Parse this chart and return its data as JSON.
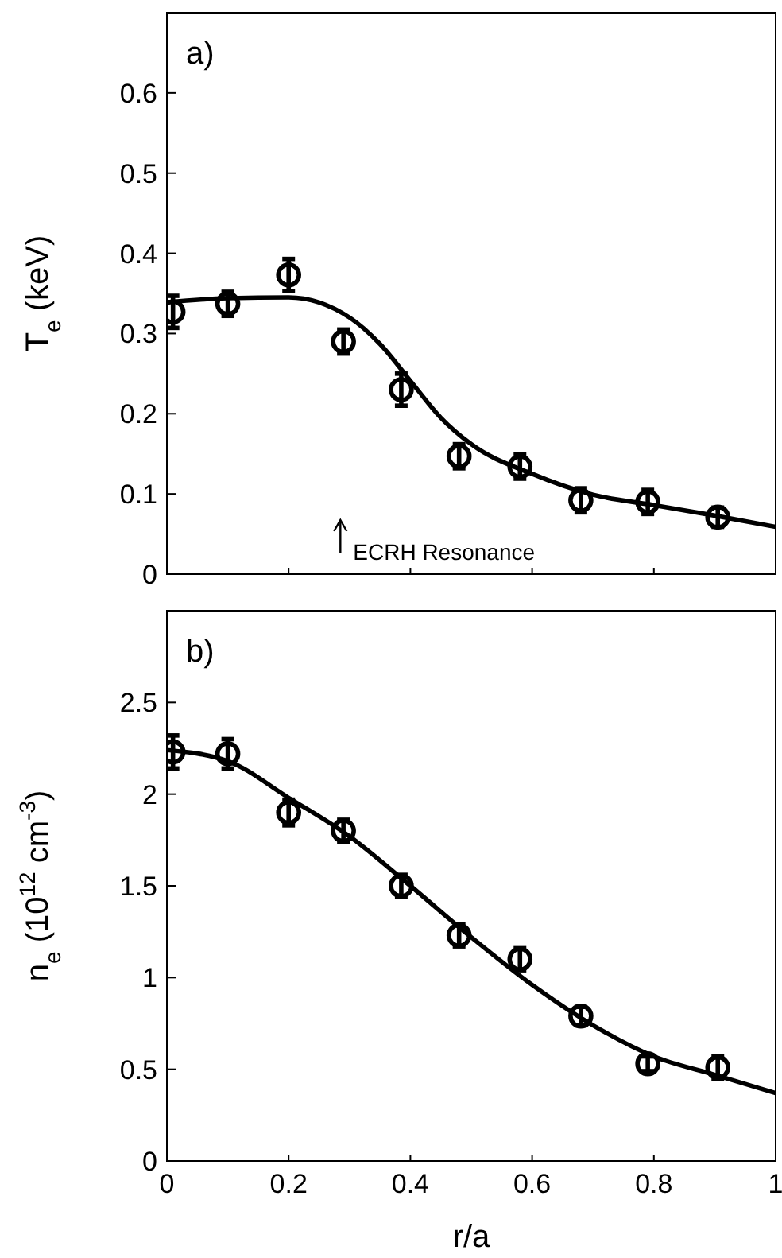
{
  "chart_data": [
    {
      "type": "scatter",
      "ylabel": "T$_{e}$ (keV)",
      "annotations": [
        "a)",
        "ECRH Resonance"
      ],
      "xlim": [
        0,
        1
      ],
      "xticks": [
        0,
        0.2,
        0.4,
        0.6,
        0.8,
        1
      ],
      "ylim": [
        0,
        0.7
      ],
      "yticks": [
        0,
        0.1,
        0.2,
        0.3,
        0.4,
        0.5,
        0.6
      ],
      "tick_labels": "y",
      "grid": false,
      "legend": false,
      "series": [
        {
          "color": "#000000",
          "marker": "circle",
          "x": [
            0.01,
            0.1,
            0.2,
            0.29,
            0.385,
            0.48,
            0.58,
            0.68,
            0.79,
            0.905
          ],
          "values": [
            0.327,
            0.337,
            0.373,
            0.29,
            0.23,
            0.147,
            0.134,
            0.092,
            0.09,
            0.071
          ],
          "errors": [
            0.02,
            0.015,
            0.02,
            0.015,
            0.02,
            0.015,
            0.015,
            0.015,
            0.015,
            0.012
          ]
        },
        {
          "type": "line",
          "color": "#000000",
          "line_style": "solid",
          "x": [
            0,
            0.1,
            0.2,
            0.3,
            0.35,
            0.4,
            0.45,
            0.5,
            0.6,
            0.7,
            0.8,
            0.9,
            1
          ],
          "values": [
            0.339,
            0.344,
            0.345,
            0.32,
            0.287,
            0.241,
            0.195,
            0.162,
            0.125,
            0.099,
            0.086,
            0.073,
            0.059
          ]
        }
      ]
    },
    {
      "type": "scatter",
      "xlabel": "r/a",
      "ylabel": "n$_{e}$ (10$^{12}$ cm$^{-3}$)",
      "annotations": [
        "b)"
      ],
      "xlim": [
        0,
        1
      ],
      "xticks": [
        0,
        0.2,
        0.4,
        0.6,
        0.8,
        1
      ],
      "ylim": [
        0,
        3
      ],
      "yticks": [
        0,
        0.5,
        1,
        1.5,
        2,
        2.5
      ],
      "grid": false,
      "legend": false,
      "series": [
        {
          "color": "#000000",
          "marker": "circle",
          "x": [
            0.01,
            0.1,
            0.2,
            0.29,
            0.385,
            0.48,
            0.58,
            0.68,
            0.79,
            0.905
          ],
          "values": [
            2.23,
            2.22,
            1.9,
            1.8,
            1.5,
            1.23,
            1.1,
            0.79,
            0.53,
            0.51
          ],
          "errors": [
            0.09,
            0.08,
            0.07,
            0.06,
            0.06,
            0.06,
            0.06,
            0.05,
            0.04,
            0.06
          ]
        },
        {
          "type": "line",
          "color": "#000000",
          "line_style": "solid",
          "x": [
            0,
            0.1,
            0.2,
            0.3,
            0.4,
            0.5,
            0.6,
            0.7,
            0.8,
            0.9,
            1
          ],
          "values": [
            2.24,
            2.18,
            1.98,
            1.77,
            1.5,
            1.22,
            0.96,
            0.74,
            0.57,
            0.47,
            0.37
          ]
        }
      ]
    }
  ]
}
